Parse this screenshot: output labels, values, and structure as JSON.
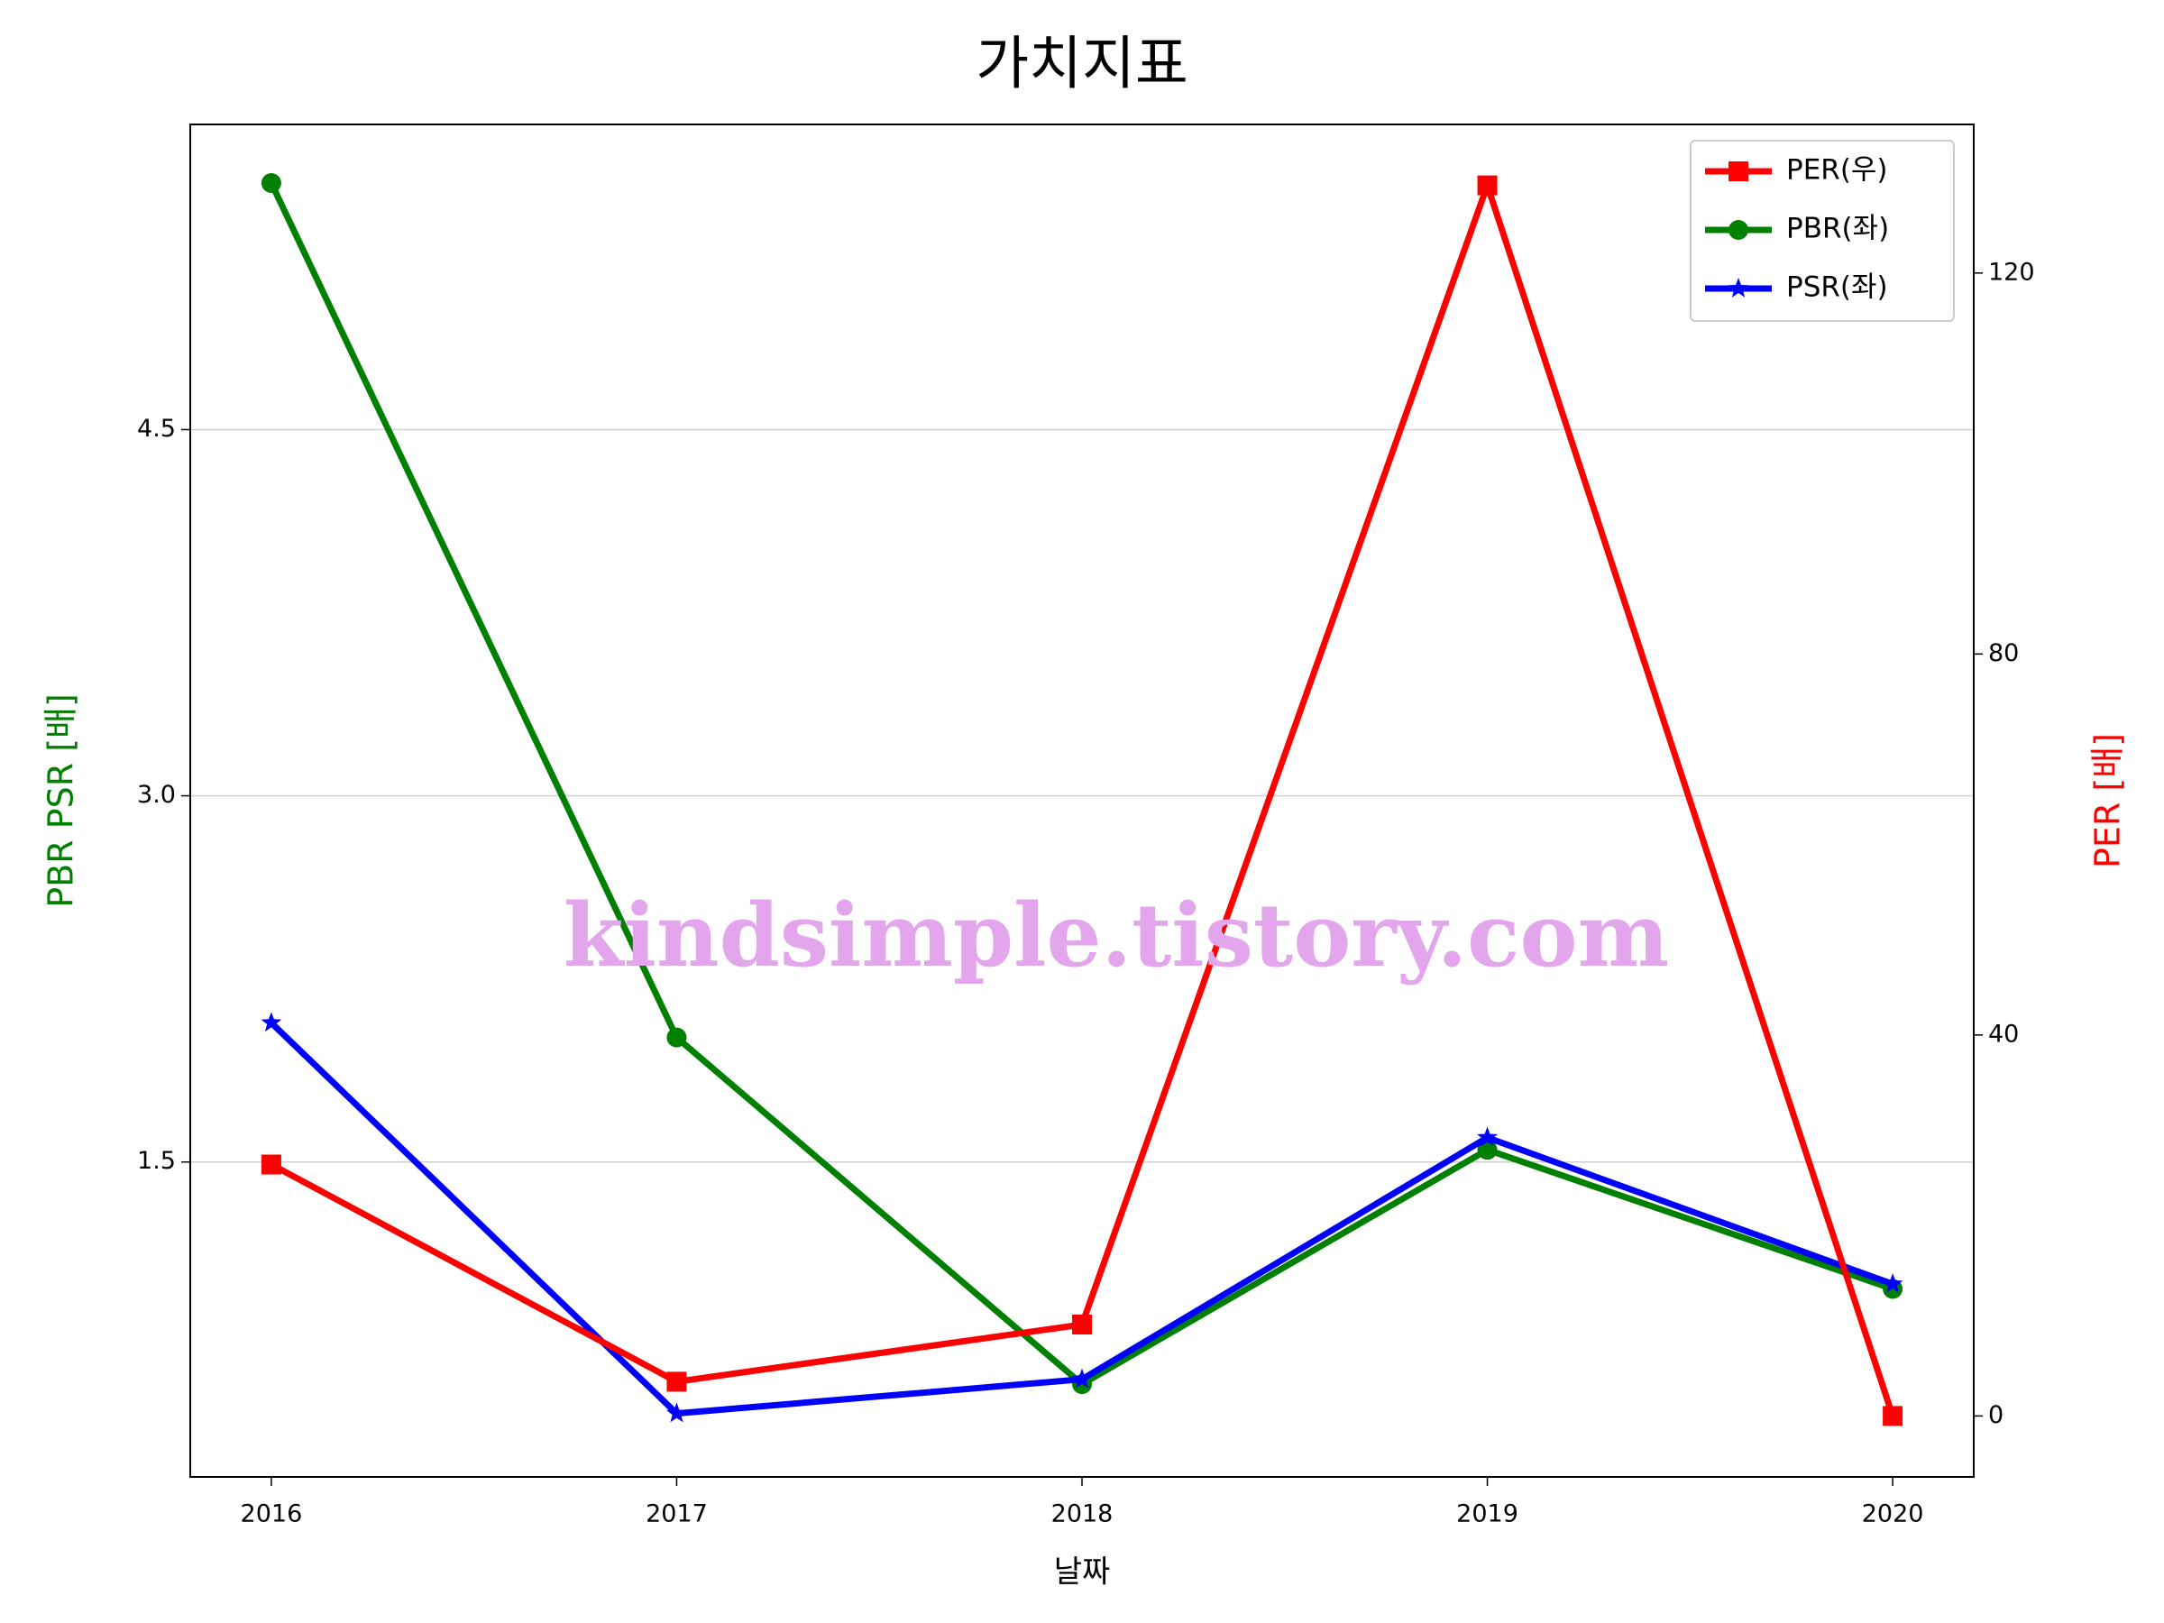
{
  "chart_data": {
    "type": "line",
    "title": "가치지표",
    "xlabel": "날짜",
    "ylabel": "PBR PSR [배]",
    "y2label": "PER [배]",
    "watermark": "kindsimple.tistory.com",
    "x": [
      2016,
      2017,
      2018,
      2019,
      2020
    ],
    "xlim": [
      2015.8,
      2020.2
    ],
    "xticks": [
      2016,
      2017,
      2018,
      2019,
      2020
    ],
    "ylim": [
      0.21,
      5.75
    ],
    "yticks": [
      1.5,
      {
        "value": 3,
        "label": "3.0"
      },
      4.5
    ],
    "y2lim": [
      -6.4,
      135.6
    ],
    "y2ticks": [
      0,
      40,
      80,
      120
    ],
    "grid": true,
    "legend": "upper right",
    "series": [
      {
        "name": "PER(우)",
        "color": "#ff0000",
        "marker": "square",
        "axis": "y2",
        "values": [
          26.4,
          3.6,
          9.6,
          129.2,
          0
        ]
      },
      {
        "name": "PBR(좌)",
        "color": "#008000",
        "marker": "circle",
        "values": [
          5.51,
          2.01,
          0.59,
          1.55,
          0.98
        ]
      },
      {
        "name": "PSR(좌)",
        "color": "#0000ff",
        "marker": "star",
        "values": [
          2.07,
          0.47,
          0.61,
          1.6,
          1.0
        ]
      }
    ]
  }
}
